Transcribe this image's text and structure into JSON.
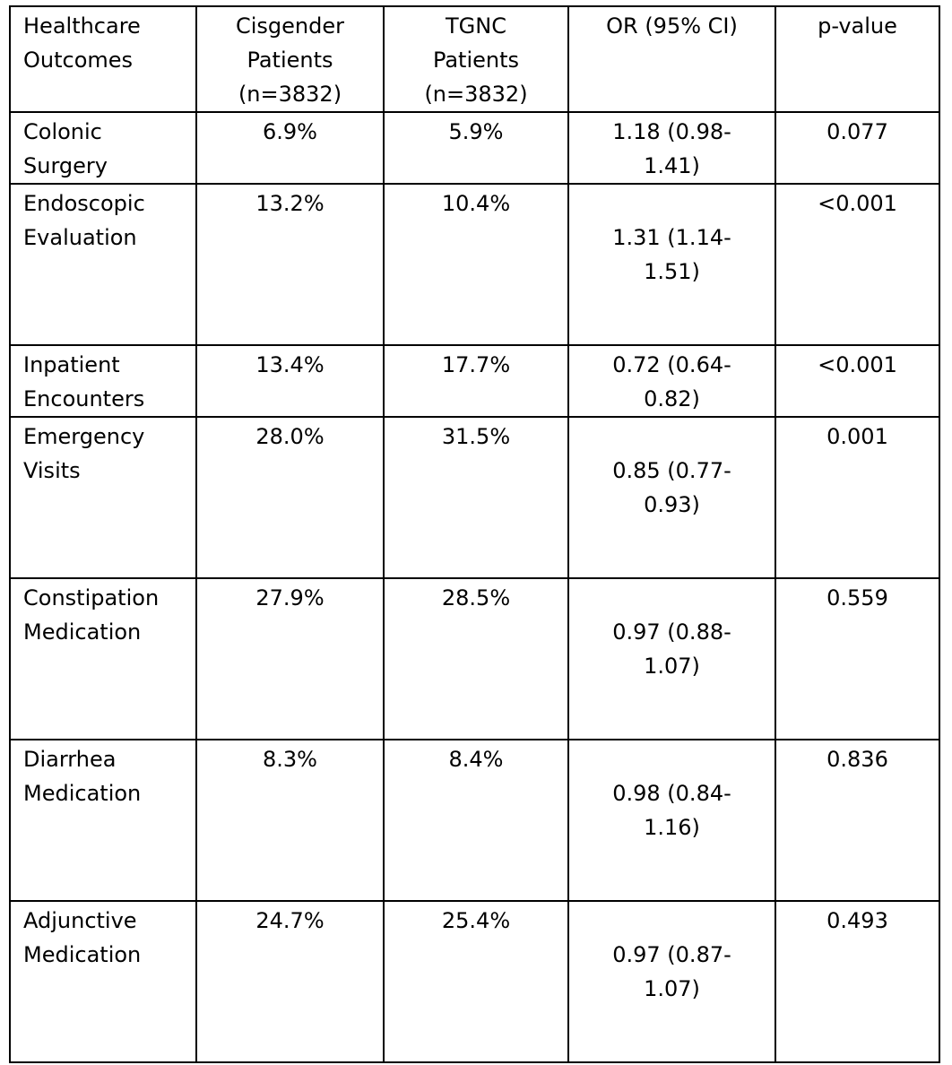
{
  "table": {
    "headers": [
      [
        "Healthcare",
        "Outcomes"
      ],
      [
        "Cisgender",
        "Patients",
        "(n=3832)"
      ],
      [
        "TGNC",
        "Patients",
        "(n=3832)"
      ],
      [
        "OR (95% CI)"
      ],
      [
        "p-value"
      ]
    ],
    "rows": [
      {
        "outcome": [
          "Colonic",
          "Surgery"
        ],
        "cis": "6.9%",
        "tgnc": "5.9%",
        "or": [
          "1.18 (0.98-",
          "1.41)"
        ],
        "p": "0.077"
      },
      {
        "outcome": [
          "Endoscopic",
          "Evaluation"
        ],
        "cis": "13.2%",
        "tgnc": "10.4%",
        "or": [
          "1.31 (1.14-",
          "1.51)"
        ],
        "p": "<0.001"
      },
      {
        "outcome": [
          "Inpatient",
          "Encounters"
        ],
        "cis": "13.4%",
        "tgnc": "17.7%",
        "or": [
          "0.72 (0.64-",
          "0.82)"
        ],
        "p": "<0.001"
      },
      {
        "outcome": [
          "Emergency",
          "Visits"
        ],
        "cis": "28.0%",
        "tgnc": "31.5%",
        "or": [
          "0.85 (0.77-",
          "0.93)"
        ],
        "p": "0.001"
      },
      {
        "outcome": [
          "Constipation",
          "Medication"
        ],
        "cis": "27.9%",
        "tgnc": "28.5%",
        "or": [
          "0.97 (0.88-",
          "1.07)"
        ],
        "p": "0.559"
      },
      {
        "outcome": [
          "Diarrhea",
          "Medication"
        ],
        "cis": "8.3%",
        "tgnc": "8.4%",
        "or": [
          "0.98 (0.84-",
          "1.16)"
        ],
        "p": "0.836"
      },
      {
        "outcome": [
          "Adjunctive",
          "Medication"
        ],
        "cis": "24.7%",
        "tgnc": "25.4%",
        "or": [
          "0.97 (0.87-",
          "1.07)"
        ],
        "p": "0.493"
      }
    ]
  }
}
